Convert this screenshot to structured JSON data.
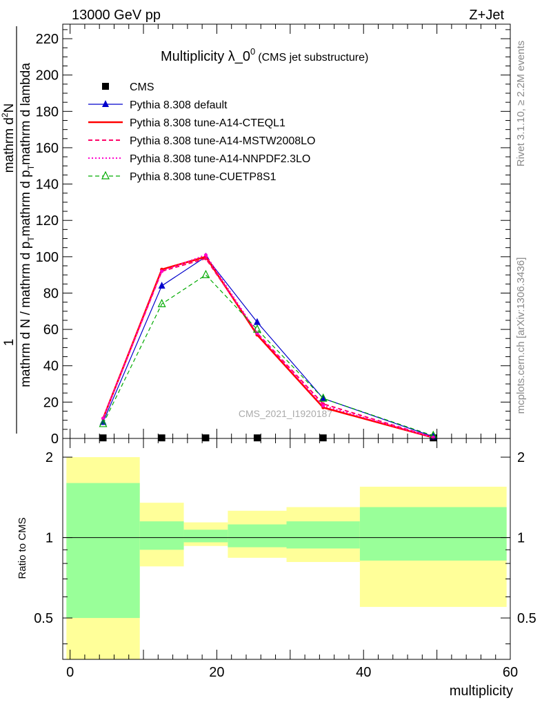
{
  "header": {
    "left": "13000 GeV pp",
    "right": "Z+Jet"
  },
  "side_labels": {
    "rivet": "Rivet 3.1.10, ≥ 2.2M events",
    "mcplots": "mcplots.cern.ch [arXiv:1306.3436]"
  },
  "watermark": "CMS_2021_I1920187",
  "chart_data": [
    {
      "type": "line",
      "title": "Multiplicity λ_0",
      "title_superscript": "0",
      "subtitle": "(CMS jet substructure)",
      "ylabel_numerator": "1",
      "ylabel_denominator": "mathrm d N / mathrm d p_T mathrm d p_T mathrm d lambda",
      "ylabel_rotated_top": "mathrm d^{2}N",
      "ylabel_parts": [
        "mathrm d N / mathrm d p",
        "T",
        "mathrm d p",
        "T",
        "mathrm d lambda"
      ],
      "ylabel_numerator_text": "mathrm d",
      "ylabel_numerator_sup": "2",
      "ylabel_numerator_tail": "N",
      "xlim": [
        -1,
        60
      ],
      "ylim": [
        0,
        228
      ],
      "yticks": [
        0,
        20,
        40,
        60,
        80,
        100,
        120,
        140,
        160,
        180,
        200,
        220
      ],
      "legend_position": "top-left",
      "series": [
        {
          "name": "CMS",
          "color": "#000000",
          "style": "marker-square",
          "x": [
            4.5,
            12.5,
            18.5,
            25.5,
            34.5,
            49.5
          ],
          "y": [
            0.3,
            0.3,
            0.3,
            0.3,
            0.3,
            0.3
          ]
        },
        {
          "name": "Pythia 8.308 default",
          "color": "#0000cc",
          "style": "solid-triangle",
          "x": [
            4.5,
            12.5,
            18.5,
            25.5,
            34.5,
            49.5
          ],
          "y": [
            9,
            84,
            100,
            64,
            22,
            1
          ]
        },
        {
          "name": "Pythia 8.308 tune-A14-CTEQL1",
          "color": "#ff0000",
          "style": "thick-solid",
          "x": [
            4.5,
            12.5,
            18.5,
            25.5,
            34.5,
            49.5
          ],
          "y": [
            11,
            93,
            100,
            57,
            17,
            0.5
          ]
        },
        {
          "name": "Pythia 8.308 tune-A14-MSTW2008LO",
          "color": "#ff0066",
          "style": "dashed",
          "x": [
            4.5,
            12.5,
            18.5,
            25.5,
            34.5,
            49.5
          ],
          "y": [
            11,
            92,
            99,
            58,
            19,
            0.6
          ]
        },
        {
          "name": "Pythia 8.308 tune-A14-NNPDF2.3LO",
          "color": "#ff00cc",
          "style": "dotted",
          "x": [
            4.5,
            12.5,
            18.5,
            25.5,
            34.5,
            49.5
          ],
          "y": [
            11,
            92,
            101,
            58,
            18,
            0.5
          ]
        },
        {
          "name": "Pythia 8.308 tune-CUETP8S1",
          "color": "#00aa00",
          "style": "dashed-open-triangle",
          "x": [
            4.5,
            12.5,
            18.5,
            25.5,
            34.5,
            49.5
          ],
          "y": [
            8,
            74,
            90,
            60,
            22,
            1.5
          ]
        }
      ]
    },
    {
      "type": "area",
      "ylabel": "Ratio to CMS",
      "xlabel": "multiplicity",
      "xlim": [
        -1,
        60
      ],
      "ylim": [
        0.35,
        2.35
      ],
      "yticks": [
        0.5,
        1,
        2
      ],
      "xticks": [
        0,
        20,
        40,
        60
      ],
      "reference_line": 1,
      "bins": [
        {
          "x_low": -0.5,
          "x_high": 9.5,
          "stat_low": 0.5,
          "stat_high": 1.6,
          "total_low": 0.3,
          "total_high": 2.0
        },
        {
          "x_low": 9.5,
          "x_high": 15.5,
          "stat_low": 0.9,
          "stat_high": 1.15,
          "total_low": 0.78,
          "total_high": 1.35
        },
        {
          "x_low": 15.5,
          "x_high": 21.5,
          "stat_low": 0.96,
          "stat_high": 1.07,
          "total_low": 0.93,
          "total_high": 1.14
        },
        {
          "x_low": 21.5,
          "x_high": 29.5,
          "stat_low": 0.92,
          "stat_high": 1.12,
          "total_low": 0.84,
          "total_high": 1.26
        },
        {
          "x_low": 29.5,
          "x_high": 39.5,
          "stat_low": 0.91,
          "stat_high": 1.15,
          "total_low": 0.81,
          "total_high": 1.3
        },
        {
          "x_low": 39.5,
          "x_high": 59.5,
          "stat_low": 0.82,
          "stat_high": 1.3,
          "total_low": 0.55,
          "total_high": 1.55
        }
      ],
      "colors": {
        "stat": "#99ff99",
        "total": "#ffff99"
      }
    }
  ]
}
